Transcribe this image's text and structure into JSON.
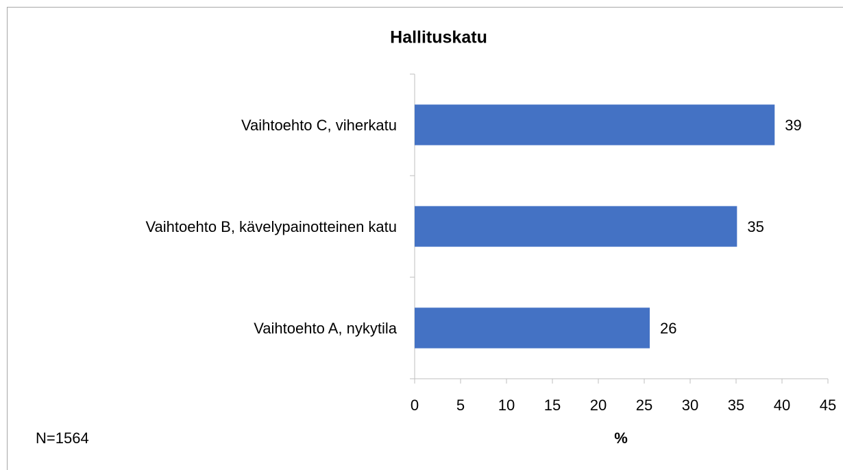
{
  "chart_data": {
    "type": "bar",
    "orientation": "horizontal",
    "title": "Hallituskatu",
    "categories": [
      "Vaihtoehto C, viherkatu",
      "Vaihtoehto B, kävelypainotteinen katu",
      "Vaihtoehto A, nykytila"
    ],
    "values": [
      39.2,
      35.1,
      25.6
    ],
    "value_labels": [
      "39",
      "35",
      "26"
    ],
    "color": "#4472c4",
    "xlim": [
      0,
      45
    ],
    "xticks": [
      0,
      5,
      10,
      15,
      20,
      25,
      30,
      35,
      40,
      45
    ],
    "xlabel": "%",
    "annotation": "N=1564",
    "grid": false
  }
}
